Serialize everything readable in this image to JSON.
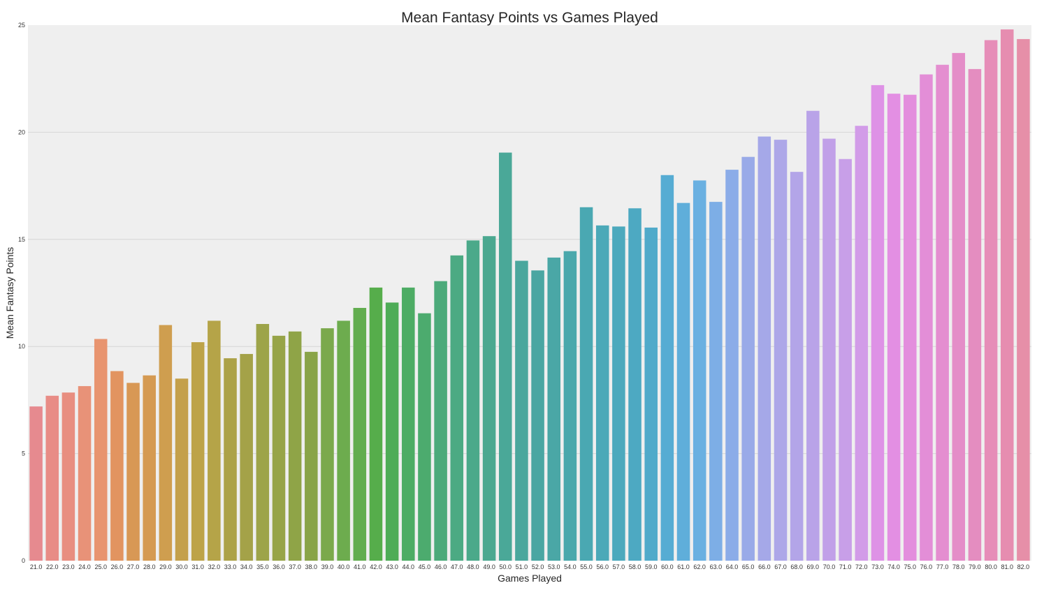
{
  "chart_data": {
    "type": "bar",
    "title": "Mean Fantasy Points vs Games Played",
    "xlabel": "Games Played",
    "ylabel": "Mean Fantasy Points",
    "ylim": [
      0,
      25
    ],
    "yticks": [
      "0",
      "5",
      "10",
      "15",
      "20",
      "25"
    ],
    "grid": "horizontal",
    "background_color": "#EFEFEF",
    "categories": [
      "21.0",
      "22.0",
      "23.0",
      "24.0",
      "25.0",
      "26.0",
      "27.0",
      "28.0",
      "29.0",
      "30.0",
      "31.0",
      "32.0",
      "33.0",
      "34.0",
      "35.0",
      "36.0",
      "37.0",
      "38.0",
      "39.0",
      "40.0",
      "41.0",
      "42.0",
      "43.0",
      "44.0",
      "45.0",
      "46.0",
      "47.0",
      "48.0",
      "49.0",
      "50.0",
      "51.0",
      "52.0",
      "53.0",
      "54.0",
      "55.0",
      "56.0",
      "57.0",
      "58.0",
      "59.0",
      "60.0",
      "61.0",
      "62.0",
      "63.0",
      "64.0",
      "65.0",
      "66.0",
      "67.0",
      "68.0",
      "69.0",
      "70.0",
      "71.0",
      "72.0",
      "73.0",
      "74.0",
      "75.0",
      "76.0",
      "77.0",
      "78.0",
      "79.0",
      "80.0",
      "81.0",
      "82.0"
    ],
    "values": [
      7.2,
      7.7,
      7.85,
      8.15,
      10.35,
      8.85,
      8.3,
      8.65,
      11.0,
      8.5,
      10.2,
      11.2,
      9.45,
      9.65,
      11.05,
      10.5,
      10.7,
      9.75,
      10.85,
      11.2,
      11.8,
      12.75,
      12.05,
      12.75,
      11.55,
      13.05,
      14.25,
      14.95,
      15.15,
      19.05,
      14.0,
      13.55,
      14.15,
      14.45,
      16.5,
      15.65,
      15.6,
      16.45,
      15.55,
      18.0,
      16.7,
      17.75,
      16.75,
      18.25,
      18.85,
      19.8,
      19.65,
      18.15,
      21.0,
      19.7,
      18.75,
      20.3,
      22.2,
      21.8,
      21.75,
      22.7,
      23.15,
      23.7,
      22.95,
      24.3,
      24.8,
      24.35
    ],
    "colors": [
      "#E68A8F",
      "#E88C86",
      "#E88E80",
      "#E89278",
      "#E8946F",
      "#E29460",
      "#D89855",
      "#D59A52",
      "#CF9E4F",
      "#C4A04B",
      "#BDA348",
      "#B5A448",
      "#ACA248",
      "#A4A248",
      "#9DA449",
      "#97A448",
      "#8FA447",
      "#89A448",
      "#7BA94C",
      "#6DAC4E",
      "#62AD4F",
      "#56AD4B",
      "#4EAC57",
      "#4DAC64",
      "#4CAB6E",
      "#4CAA7A",
      "#4CAA83",
      "#4BA98A",
      "#4BA890",
      "#4AA898",
      "#4AA79D",
      "#4AA6A2",
      "#4AA7A6",
      "#4AA8AC",
      "#4AA8B2",
      "#4BA9B8",
      "#4CA9BD",
      "#4DA9C2",
      "#50AACA",
      "#56ACD3",
      "#5FAEDA",
      "#6AB0E1",
      "#7DAEE6",
      "#8BACE8",
      "#99AAE8",
      "#A5A8E8",
      "#ADA7E8",
      "#B3A5E8",
      "#B9A3E8",
      "#C1A0E8",
      "#C89FE8",
      "#D29CE8",
      "#DE92E6",
      "#E38FE3",
      "#E38EDD",
      "#E38ED7",
      "#E48ED0",
      "#E48DC8",
      "#E48DC0",
      "#E68DB8",
      "#E68DB0",
      "#E68FA8"
    ]
  }
}
